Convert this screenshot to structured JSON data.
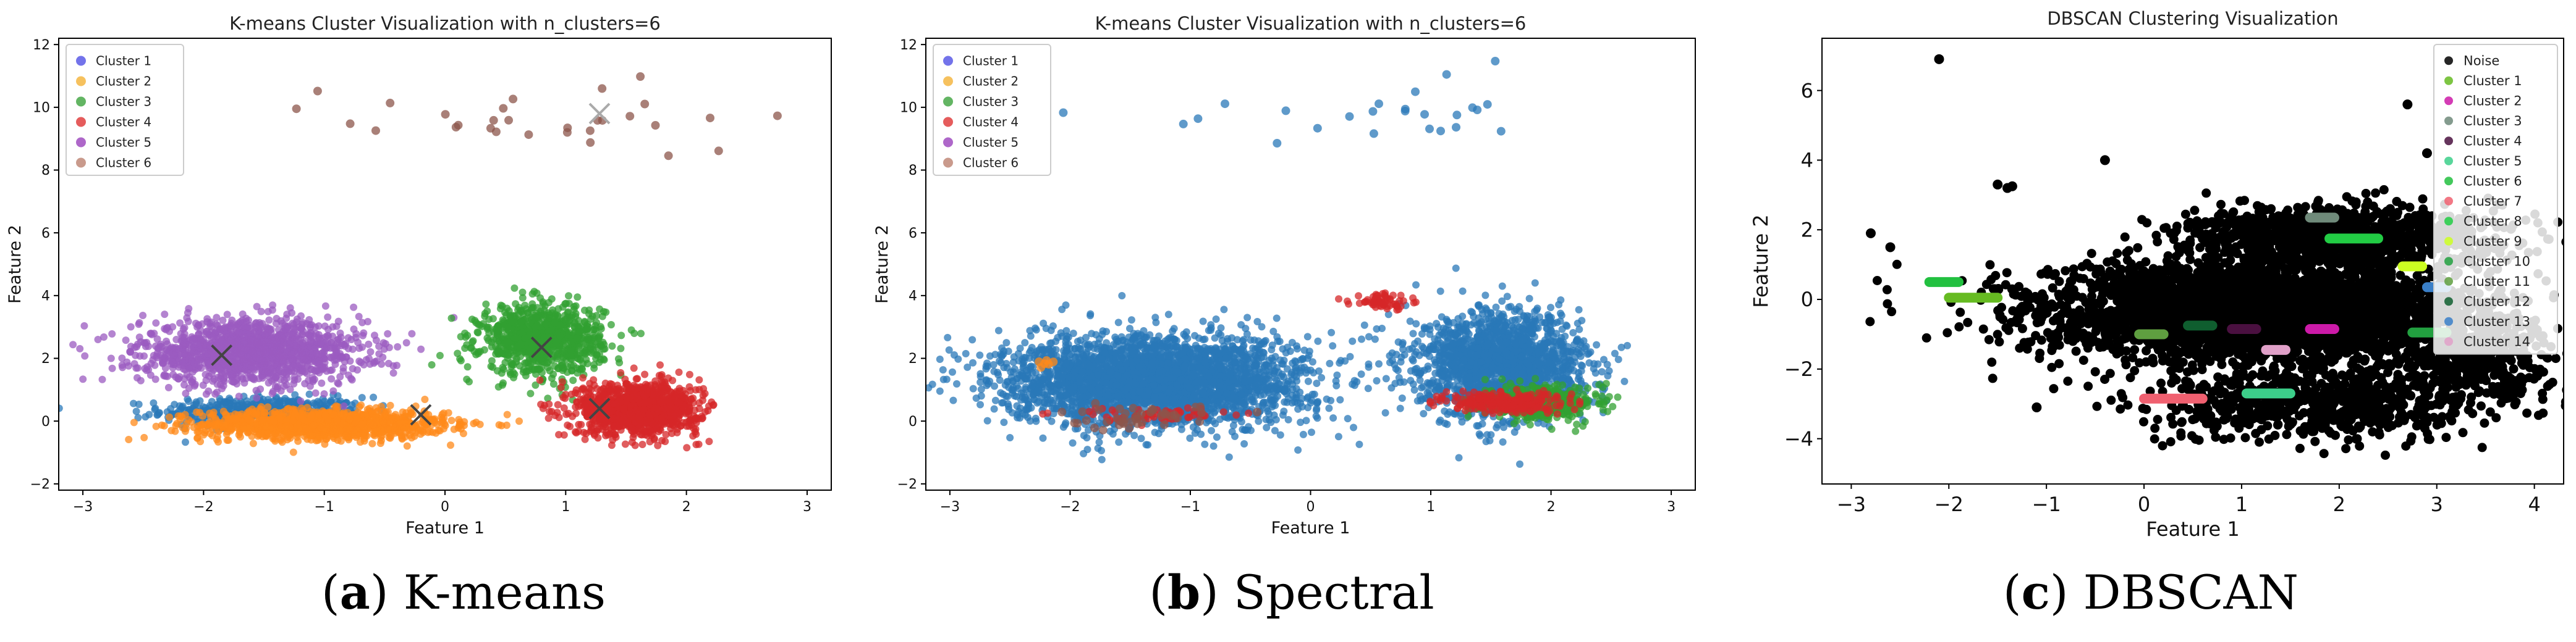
{
  "panels": [
    {
      "id": "kmeans",
      "caption_letter": "a",
      "caption_text": "K-means",
      "title": "K-means Cluster Visualization with n_clusters=6",
      "xlabel": "Feature 1",
      "ylabel": "Feature 2",
      "xlim": [
        -3.2,
        3.2
      ],
      "ylim": [
        -2.2,
        12.2
      ],
      "xticks": [
        -3,
        -2,
        -1,
        0,
        1,
        2,
        3
      ],
      "yticks": [
        -2,
        0,
        2,
        4,
        6,
        8,
        10,
        12
      ],
      "legend_position": "top-left",
      "legend": [
        {
          "label": "Cluster 1",
          "color": "#5a5ae6"
        },
        {
          "label": "Cluster 2",
          "color": "#f5b642"
        },
        {
          "label": "Cluster 3",
          "color": "#48a848"
        },
        {
          "label": "Cluster 4",
          "color": "#e04040"
        },
        {
          "label": "Cluster 5",
          "color": "#a04cc0"
        },
        {
          "label": "Cluster 6",
          "color": "#c08878"
        }
      ]
    },
    {
      "id": "spectral",
      "caption_letter": "b",
      "caption_text": "Spectral",
      "title": "K-means Cluster Visualization with n_clusters=6",
      "xlabel": "Feature 1",
      "ylabel": "Feature 2",
      "xlim": [
        -3.2,
        3.2
      ],
      "ylim": [
        -2.2,
        12.2
      ],
      "xticks": [
        -3,
        -2,
        -1,
        0,
        1,
        2,
        3
      ],
      "yticks": [
        -2,
        0,
        2,
        4,
        6,
        8,
        10,
        12
      ],
      "legend_position": "top-left",
      "legend": [
        {
          "label": "Cluster 1",
          "color": "#5a5ae6"
        },
        {
          "label": "Cluster 2",
          "color": "#f5b642"
        },
        {
          "label": "Cluster 3",
          "color": "#48a848"
        },
        {
          "label": "Cluster 4",
          "color": "#e04040"
        },
        {
          "label": "Cluster 5",
          "color": "#a04cc0"
        },
        {
          "label": "Cluster 6",
          "color": "#c08878"
        }
      ]
    },
    {
      "id": "dbscan",
      "caption_letter": "c",
      "caption_text": "DBSCAN",
      "title": "DBSCAN Clustering Visualization",
      "xlabel": "Feature 1",
      "ylabel": "Feature 2",
      "xlim": [
        -3.3,
        4.3
      ],
      "ylim": [
        -5.3,
        7.5
      ],
      "xticks": [
        -3,
        -2,
        -1,
        0,
        1,
        2,
        3,
        4
      ],
      "yticks": [
        -4,
        -2,
        0,
        2,
        4,
        6
      ],
      "legend_position": "top-right",
      "legend": [
        {
          "label": "Noise",
          "color": "#000000"
        },
        {
          "label": "Cluster 1",
          "color": "#66bb22"
        },
        {
          "label": "Cluster 2",
          "color": "#cc1aa8"
        },
        {
          "label": "Cluster 3",
          "color": "#6f8a7a"
        },
        {
          "label": "Cluster 4",
          "color": "#4a1040"
        },
        {
          "label": "Cluster 5",
          "color": "#3ccf8a"
        },
        {
          "label": "Cluster 6",
          "color": "#22c040"
        },
        {
          "label": "Cluster 7",
          "color": "#f06070"
        },
        {
          "label": "Cluster 8",
          "color": "#22cc44"
        },
        {
          "label": "Cluster 9",
          "color": "#ccff22"
        },
        {
          "label": "Cluster 10",
          "color": "#22a040"
        },
        {
          "label": "Cluster 11",
          "color": "#5f9f40"
        },
        {
          "label": "Cluster 12",
          "color": "#0f5e2f"
        },
        {
          "label": "Cluster 13",
          "color": "#3a7fc8"
        },
        {
          "label": "Cluster 14",
          "color": "#e0a0c8"
        }
      ]
    }
  ],
  "chart_data": [
    {
      "type": "scatter",
      "title": "K-means Cluster Visualization with n_clusters=6",
      "xlabel": "Feature 1",
      "ylabel": "Feature 2",
      "xlim": [
        -3.2,
        3.2
      ],
      "ylim": [
        -2.2,
        12.2
      ],
      "grid": false,
      "legend": "top-left",
      "blobs": [
        {
          "series": "Cluster 1",
          "color": "#2a78b8",
          "cx": -1.5,
          "cy": 0.3,
          "rx": 1.0,
          "ry": 0.55,
          "n": 500
        },
        {
          "series": "Cluster 2",
          "color": "#ff8a1a",
          "cx": -1.0,
          "cy": -0.1,
          "rx": 1.2,
          "ry": 0.55,
          "n": 1200
        },
        {
          "series": "Cluster 5",
          "color": "#9b5bc0",
          "cx": -1.6,
          "cy": 2.2,
          "rx": 1.1,
          "ry": 1.2,
          "n": 1400
        },
        {
          "series": "Cluster 3",
          "color": "#32a032",
          "cx": 0.8,
          "cy": 2.6,
          "rx": 0.6,
          "ry": 1.3,
          "n": 900
        },
        {
          "series": "Cluster 4",
          "color": "#d62728",
          "cx": 1.6,
          "cy": 0.4,
          "rx": 0.6,
          "ry": 1.0,
          "n": 1100
        },
        {
          "series": "Cluster 6",
          "color": "#8c564b",
          "cx": 0.8,
          "cy": 9.6,
          "rx": 2.0,
          "ry": 1.6,
          "n": 30
        }
      ],
      "centroids": [
        {
          "x": -1.85,
          "y": 2.1,
          "color": "#444444"
        },
        {
          "x": -0.2,
          "y": 0.2,
          "color": "#444444"
        },
        {
          "x": 0.8,
          "y": 2.35,
          "color": "#444444"
        },
        {
          "x": 1.28,
          "y": 0.4,
          "color": "#444444"
        },
        {
          "x": 1.28,
          "y": 9.8,
          "color": "#aaaaaa"
        }
      ]
    },
    {
      "type": "scatter",
      "title": "K-means Cluster Visualization with n_clusters=6",
      "xlabel": "Feature 1",
      "ylabel": "Feature 2",
      "xlim": [
        -3.2,
        3.2
      ],
      "ylim": [
        -2.2,
        12.2
      ],
      "grid": false,
      "legend": "top-left",
      "blobs": [
        {
          "series": "Cluster 1",
          "color": "#2a78b8",
          "cx": -1.3,
          "cy": 1.3,
          "rx": 1.5,
          "ry": 1.7,
          "n": 3000
        },
        {
          "series": "Cluster 1",
          "color": "#2a78b8",
          "cx": 1.6,
          "cy": 1.8,
          "rx": 0.8,
          "ry": 1.9,
          "n": 1800
        },
        {
          "series": "Cluster 1",
          "color": "#2a78b8",
          "cx": 0.7,
          "cy": 9.8,
          "rx": 2.2,
          "ry": 1.4,
          "n": 26
        },
        {
          "series": "Cluster 3",
          "color": "#32a032",
          "cx": 1.9,
          "cy": 0.6,
          "rx": 0.55,
          "ry": 0.6,
          "n": 500
        },
        {
          "series": "Cluster 4",
          "color": "#d62728",
          "cx": 1.6,
          "cy": 0.6,
          "rx": 0.6,
          "ry": 0.4,
          "n": 240
        },
        {
          "series": "Cluster 4",
          "color": "#d62728",
          "cx": 0.6,
          "cy": 3.8,
          "rx": 0.3,
          "ry": 0.3,
          "n": 60
        },
        {
          "series": "Cluster 4",
          "color": "#d62728",
          "cx": -1.2,
          "cy": 0.2,
          "rx": 1.0,
          "ry": 0.3,
          "n": 60
        },
        {
          "series": "Cluster 6",
          "color": "#8c564b",
          "cx": -1.5,
          "cy": 0.1,
          "rx": 0.9,
          "ry": 0.4,
          "n": 40
        },
        {
          "series": "Cluster 2",
          "color": "#ff8a1a",
          "cx": -2.2,
          "cy": 1.8,
          "rx": 0.1,
          "ry": 0.2,
          "n": 6
        }
      ]
    },
    {
      "type": "scatter",
      "title": "DBSCAN Clustering Visualization",
      "xlabel": "Feature 1",
      "ylabel": "Feature 2",
      "xlim": [
        -3.3,
        4.3
      ],
      "ylim": [
        -5.3,
        7.5
      ],
      "grid": false,
      "legend": "top-right",
      "noise_blobs": [
        {
          "cx": 1.2,
          "cy": -0.4,
          "rx": 2.4,
          "ry": 1.5,
          "n": 3500
        },
        {
          "cx": 2.0,
          "cy": 1.8,
          "rx": 1.8,
          "ry": 1.0,
          "n": 1000
        },
        {
          "cx": 1.8,
          "cy": -3.0,
          "rx": 2.0,
          "ry": 1.1,
          "n": 700
        },
        {
          "cx": 3.4,
          "cy": -1.6,
          "rx": 0.8,
          "ry": 1.2,
          "n": 400
        }
      ],
      "noise_outliers": [
        {
          "x": -2.1,
          "y": 6.9
        },
        {
          "x": -2.8,
          "y": 1.9
        },
        {
          "x": -2.6,
          "y": 1.5
        },
        {
          "x": -0.4,
          "y": 4.0
        },
        {
          "x": 2.7,
          "y": 5.6
        },
        {
          "x": -1.1,
          "y": -3.1
        },
        {
          "x": -1.5,
          "y": 3.3
        },
        {
          "x": -1.4,
          "y": 3.2
        },
        {
          "x": -1.35,
          "y": 3.25
        },
        {
          "x": 2.9,
          "y": 4.2
        }
      ],
      "cluster_segments": [
        {
          "series": "Cluster 1",
          "color": "#66bb22",
          "x1": -2.0,
          "x2": -1.5,
          "y": 0.05
        },
        {
          "series": "Cluster 6",
          "color": "#22c040",
          "x1": -2.2,
          "x2": -1.9,
          "y": 0.5
        },
        {
          "series": "Cluster 11",
          "color": "#5f9f40",
          "x1": -0.05,
          "x2": 0.2,
          "y": -1.0
        },
        {
          "series": "Cluster 12",
          "color": "#0f5e2f",
          "x1": 0.45,
          "x2": 0.7,
          "y": -0.75
        },
        {
          "series": "Cluster 4",
          "color": "#4a1040",
          "x1": 0.9,
          "x2": 1.15,
          "y": -0.85
        },
        {
          "series": "Cluster 14",
          "color": "#e0a0c8",
          "x1": 1.25,
          "x2": 1.45,
          "y": -1.45
        },
        {
          "series": "Cluster 2",
          "color": "#cc1aa8",
          "x1": 1.7,
          "x2": 1.95,
          "y": -0.85
        },
        {
          "series": "Cluster 7",
          "color": "#f06070",
          "x1": 0.0,
          "x2": 0.6,
          "y": -2.85
        },
        {
          "series": "Cluster 5",
          "color": "#3ccf8a",
          "x1": 1.05,
          "x2": 1.5,
          "y": -2.7
        },
        {
          "series": "Cluster 8",
          "color": "#22cc44",
          "x1": 1.9,
          "x2": 2.4,
          "y": 1.75
        },
        {
          "series": "Cluster 3",
          "color": "#6f8a7a",
          "x1": 1.7,
          "x2": 1.95,
          "y": 2.35
        },
        {
          "series": "Cluster 9",
          "color": "#ccff22",
          "x1": 2.65,
          "x2": 2.85,
          "y": 0.95
        },
        {
          "series": "Cluster 13",
          "color": "#3a7fc8",
          "x1": 2.9,
          "x2": 3.1,
          "y": 0.35
        },
        {
          "series": "Cluster 10",
          "color": "#22a040",
          "x1": 2.75,
          "x2": 3.1,
          "y": -0.95
        }
      ]
    }
  ]
}
